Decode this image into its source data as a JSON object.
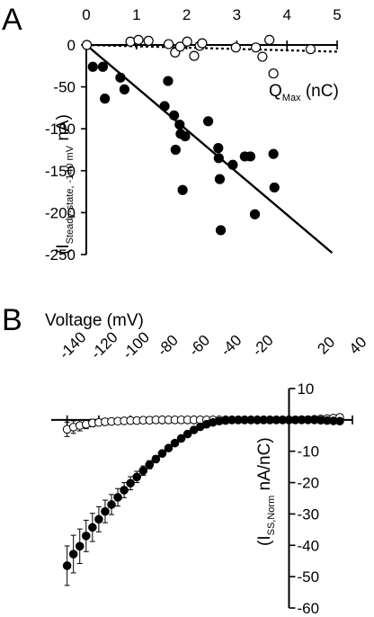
{
  "chart_data": [
    {
      "panel": "A",
      "type": "scatter",
      "xlabel": "Q",
      "xlabel_sub": "Max",
      "xlabel_unit": " (nC)",
      "ylabel_open": "(I",
      "ylabel_sub": "Steady-state, -140 mV",
      "ylabel_unit": " nA)",
      "xlim": [
        0,
        5
      ],
      "ylim": [
        -250,
        0
      ],
      "x_ticks": [
        0,
        1,
        2,
        3,
        4,
        5
      ],
      "y_ticks": [
        0,
        -50,
        -100,
        -150,
        -200,
        -250
      ],
      "series": [
        {
          "marker": "filled-circle",
          "points": [
            [
              0.13,
              -26
            ],
            [
              0.33,
              -26
            ],
            [
              0.37,
              -64
            ],
            [
              0.68,
              -39
            ],
            [
              0.76,
              -53
            ],
            [
              1.56,
              -73
            ],
            [
              1.63,
              -43
            ],
            [
              1.75,
              -84
            ],
            [
              1.78,
              -125
            ],
            [
              1.86,
              -95
            ],
            [
              1.88,
              -106
            ],
            [
              1.92,
              -173
            ],
            [
              1.97,
              -109
            ],
            [
              2.43,
              -91
            ],
            [
              2.63,
              -123
            ],
            [
              2.64,
              -135
            ],
            [
              2.66,
              -160
            ],
            [
              2.68,
              -221
            ],
            [
              2.92,
              -143
            ],
            [
              3.16,
              -133
            ],
            [
              3.27,
              -133
            ],
            [
              3.36,
              -202
            ],
            [
              3.73,
              -130
            ],
            [
              3.75,
              -170
            ]
          ],
          "fit_line": [
            [
              0,
              0
            ],
            [
              4.9,
              -248
            ]
          ]
        },
        {
          "marker": "open-circle",
          "points": [
            [
              0.01,
              0
            ],
            [
              0.88,
              4
            ],
            [
              1.04,
              6
            ],
            [
              1.24,
              5
            ],
            [
              1.64,
              1
            ],
            [
              1.77,
              -9
            ],
            [
              1.87,
              -2
            ],
            [
              2.01,
              4
            ],
            [
              2.15,
              -13
            ],
            [
              2.26,
              -1
            ],
            [
              2.31,
              2
            ],
            [
              2.98,
              -3
            ],
            [
              3.38,
              -3
            ],
            [
              3.51,
              -14
            ],
            [
              3.65,
              6
            ],
            [
              3.73,
              -34
            ],
            [
              4.47,
              -5
            ]
          ],
          "fit_line": [
            [
              0,
              0
            ],
            [
              5.0,
              -8
            ]
          ]
        }
      ]
    },
    {
      "panel": "B",
      "type": "scatter",
      "xlabel": "Voltage (mV)",
      "ylabel_open": "(I",
      "ylabel_sub": "SS,Norm",
      "ylabel_unit": " nA/nC)",
      "xlim": [
        -150,
        40
      ],
      "ylim": [
        -60,
        10
      ],
      "x_ticks": [
        -140,
        -120,
        -100,
        -80,
        -60,
        -40,
        -20,
        20,
        40
      ],
      "y_ticks": [
        10,
        -10,
        -20,
        -30,
        -40,
        -50,
        -60
      ],
      "series": [
        {
          "marker": "filled-circle",
          "points": [
            [
              -140,
              -46.5,
              6.3
            ],
            [
              -136,
              -42.8,
              6.0
            ],
            [
              -132,
              -40.3,
              5.5
            ],
            [
              -128,
              -37.0,
              5.0
            ],
            [
              -124,
              -34.3,
              4.5
            ],
            [
              -120,
              -31.7,
              4.0
            ],
            [
              -116,
              -29.2,
              3.6
            ],
            [
              -112,
              -27.0,
              3.2
            ],
            [
              -108,
              -24.7,
              2.8
            ],
            [
              -104,
              -22.4,
              2.4
            ],
            [
              -100,
              -20.2,
              2.1
            ],
            [
              -96,
              -18.2,
              1.8
            ],
            [
              -92,
              -16.2,
              1.5
            ],
            [
              -88,
              -14.3,
              1.3
            ],
            [
              -84,
              -12.5,
              1.1
            ],
            [
              -80,
              -10.7,
              0.9
            ],
            [
              -76,
              -9.0,
              0.8
            ],
            [
              -72,
              -7.4,
              0.7
            ],
            [
              -68,
              -5.9,
              0.6
            ],
            [
              -64,
              -4.5,
              0.5
            ],
            [
              -60,
              -3.2,
              0.4
            ],
            [
              -56,
              -2.2,
              0.3
            ],
            [
              -52,
              -1.4,
              0.3
            ],
            [
              -48,
              -0.8,
              0.2
            ],
            [
              -44,
              -0.4,
              0.2
            ],
            [
              -40,
              -0.2,
              0.2
            ],
            [
              -36,
              0,
              0.2
            ],
            [
              -32,
              0,
              0.2
            ],
            [
              -28,
              0,
              0.2
            ],
            [
              -24,
              0,
              0.2
            ],
            [
              -20,
              0,
              0.2
            ],
            [
              -16,
              0,
              0.2
            ],
            [
              -12,
              0,
              0.2
            ],
            [
              -8,
              0,
              0.2
            ],
            [
              -4,
              0,
              0.2
            ],
            [
              0,
              0,
              0.2
            ],
            [
              4,
              0,
              0.2
            ],
            [
              8,
              0,
              0.2
            ],
            [
              12,
              0,
              0.2
            ],
            [
              16,
              0,
              0.2
            ],
            [
              20,
              -0.1,
              0.3
            ],
            [
              24,
              -0.2,
              0.3
            ],
            [
              28,
              -0.3,
              0.3
            ],
            [
              32,
              -0.4,
              0.3
            ]
          ]
        },
        {
          "marker": "open-circle",
          "points": [
            [
              -140,
              -3.0,
              2.3
            ],
            [
              -136,
              -2.3,
              2.0
            ],
            [
              -132,
              -1.8,
              1.7
            ],
            [
              -128,
              -1.4,
              1.4
            ],
            [
              -124,
              -1.0,
              1.2
            ],
            [
              -120,
              -0.8,
              1.0
            ],
            [
              -116,
              -0.6,
              0.9
            ],
            [
              -112,
              -0.5,
              0.8
            ],
            [
              -108,
              -0.4,
              0.7
            ],
            [
              -104,
              -0.3,
              0.6
            ],
            [
              -100,
              -0.2,
              0.6
            ],
            [
              -96,
              -0.2,
              0.5
            ],
            [
              -92,
              -0.1,
              0.5
            ],
            [
              -88,
              -0.1,
              0.4
            ],
            [
              -84,
              0,
              0.4
            ],
            [
              -80,
              0,
              0.4
            ],
            [
              -76,
              0,
              0.3
            ],
            [
              -72,
              0,
              0.3
            ],
            [
              -68,
              0,
              0.3
            ],
            [
              -64,
              0,
              0.3
            ],
            [
              -60,
              0,
              0.3
            ],
            [
              -56,
              0,
              0.3
            ],
            [
              -52,
              0,
              0.3
            ],
            [
              -48,
              0,
              0.3
            ],
            [
              -44,
              0,
              0.3
            ],
            [
              -40,
              0,
              0.3
            ],
            [
              -36,
              0,
              0.3
            ],
            [
              -32,
              0,
              0.3
            ],
            [
              -28,
              0,
              0.3
            ],
            [
              -24,
              0,
              0.3
            ],
            [
              -20,
              0,
              0.3
            ],
            [
              -16,
              0,
              0.3
            ],
            [
              -12,
              0,
              0.3
            ],
            [
              -8,
              0,
              0.3
            ],
            [
              -4,
              0,
              0.3
            ],
            [
              0,
              0,
              0.3
            ],
            [
              4,
              0,
              0.4
            ],
            [
              8,
              0.1,
              0.4
            ],
            [
              12,
              0.1,
              0.5
            ],
            [
              16,
              0.2,
              0.6
            ],
            [
              20,
              0.3,
              0.7
            ],
            [
              24,
              0.4,
              0.8
            ],
            [
              28,
              0.6,
              0.9
            ],
            [
              32,
              0.8,
              1.0
            ]
          ]
        }
      ]
    }
  ]
}
